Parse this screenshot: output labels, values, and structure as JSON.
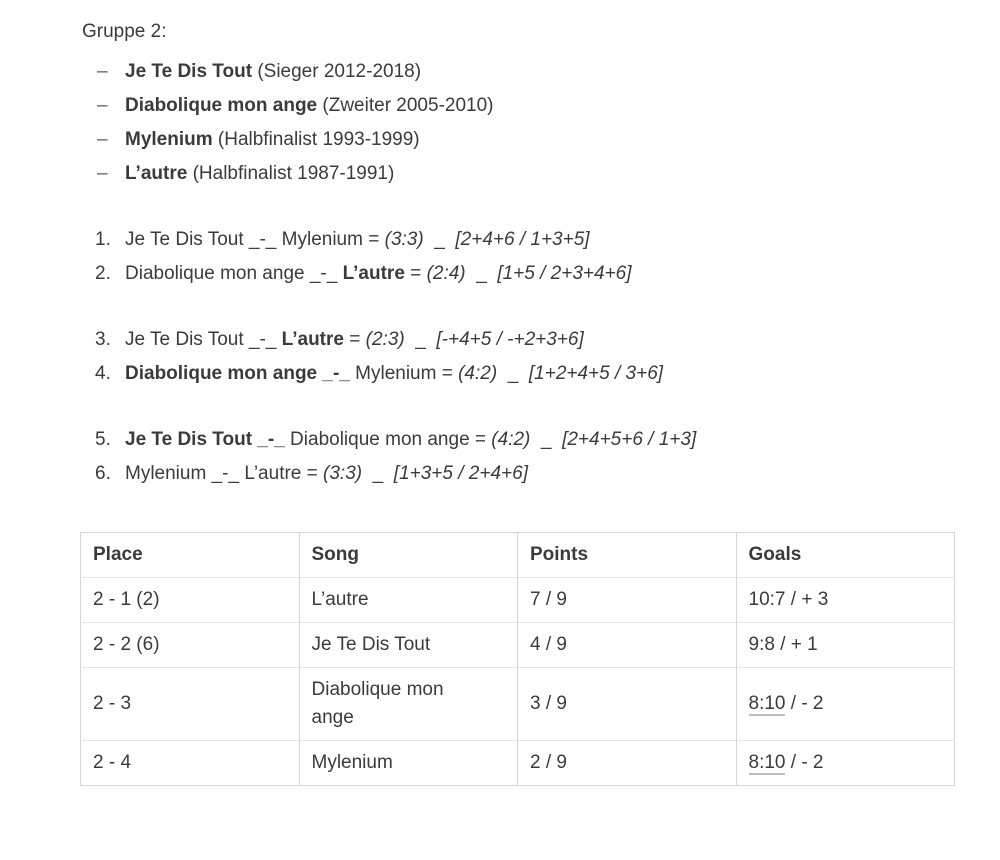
{
  "page": {
    "title": "Gruppe 2:"
  },
  "song_list": {
    "dash": "–",
    "items": [
      {
        "name": "Je Te Dis Tout",
        "info": " (Sieger 2012-2018)"
      },
      {
        "name": "Diabolique mon ange",
        "info": " (Zweiter 2005-2010)"
      },
      {
        "name": "Mylenium",
        "info": " (Halbfinalist 1993-1999)"
      },
      {
        "name": "L’autre",
        "info": " (Halbfinalist 1987-1991)"
      }
    ]
  },
  "matches": {
    "groups": [
      {
        "items": [
          {
            "num": "1.",
            "pre": "Je Te Dis Tout _-_ Mylenium",
            "bold": "",
            "post": " = ",
            "score": "(3:3)",
            "gap": "  _  ",
            "goals": "[2+4+6 / 1+3+5]"
          },
          {
            "num": "2.",
            "pre": "Diabolique mon ange _-_ ",
            "bold": "L’autre",
            "post": " = ",
            "score": "(2:4)",
            "gap": "  _  ",
            "goals": "[1+5 / 2+3+4+6]"
          }
        ]
      },
      {
        "items": [
          {
            "num": "3.",
            "pre": "Je Te Dis Tout _-_ ",
            "bold": "L’autre",
            "post": " = ",
            "score": "(2:3)",
            "gap": "  _  ",
            "goals": "[-+4+5 / -+2+3+6]"
          },
          {
            "num": "4.",
            "pre": "",
            "bold": "Diabolique mon ange _-_",
            "post": " Mylenium = ",
            "score": "(4:2)",
            "gap": "  _  ",
            "goals": "[1+2+4+5 / 3+6]"
          }
        ]
      },
      {
        "items": [
          {
            "num": "5.",
            "pre": "",
            "bold": "Je Te Dis Tout _-_",
            "post": " Diabolique mon ange = ",
            "score": "(4:2)",
            "gap": "  _  ",
            "goals": "[2+4+5+6 / 1+3]"
          },
          {
            "num": "6.",
            "pre": "Mylenium _-_ L’autre",
            "bold": "",
            "post": " = ",
            "score": "(3:3)",
            "gap": "  _  ",
            "goals": "[1+3+5 / 2+4+6]"
          }
        ]
      }
    ]
  },
  "results_table": {
    "headers": {
      "place": "Place",
      "song": "Song",
      "points": "Points",
      "goals": "Goals"
    },
    "rows": [
      {
        "place": "2 - 1 (2)",
        "song": "L’autre",
        "points": "7 / 9",
        "goals_link": "",
        "goals_rest": "10:7 / + 3"
      },
      {
        "place": "2 - 2 (6)",
        "song": "Je Te Dis Tout",
        "points": "4 / 9",
        "goals_link": "",
        "goals_rest": "9:8 / + 1"
      },
      {
        "place": "2 - 3",
        "song": "Diabolique mon ange",
        "points": "3 / 9",
        "goals_link": "8:10",
        "goals_rest": " / - 2"
      },
      {
        "place": "2 - 4",
        "song": "Mylenium",
        "points": "2 / 9",
        "goals_link": "8:10",
        "goals_rest": " / - 2"
      }
    ]
  }
}
